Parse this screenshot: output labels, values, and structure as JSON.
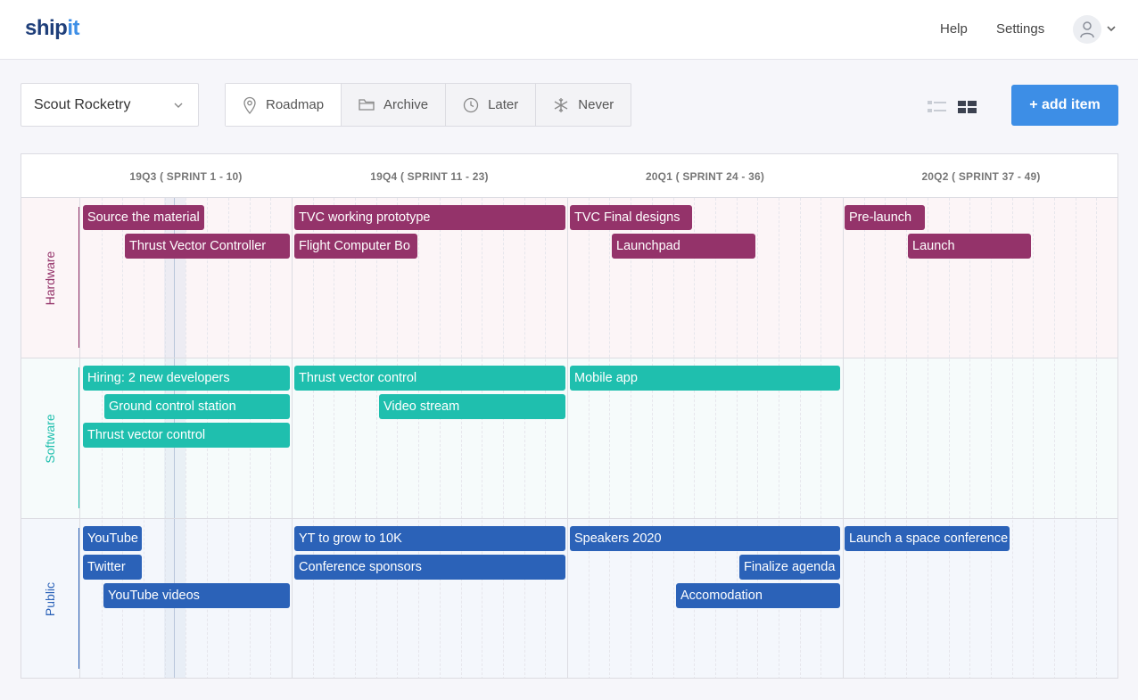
{
  "brand": {
    "part1": "ship",
    "part2": "it"
  },
  "nav": {
    "help": "Help",
    "settings": "Settings"
  },
  "project": {
    "selected": "Scout Rocketry"
  },
  "tabs": [
    {
      "label": "Roadmap",
      "icon": "map-pin-icon"
    },
    {
      "label": "Archive",
      "icon": "folder-icon"
    },
    {
      "label": "Later",
      "icon": "clock-icon"
    },
    {
      "label": "Never",
      "icon": "snowflake-icon"
    }
  ],
  "add_button": "+ add item",
  "quarters": [
    "19Q3 ( SPRINT 1 - 10)",
    "19Q4 ( SPRINT 11 - 23)",
    "20Q1 ( SPRINT 24 - 36)",
    "20Q2 ( SPRINT 37 - 49)"
  ],
  "lanes": [
    {
      "name": "Hardware",
      "color": "#94336a",
      "bg": "#fcf5f7",
      "items": [
        "Source the material",
        "Thrust Vector Controller",
        "TVC working prototype",
        "Flight Computer Bo",
        "TVC Final designs",
        "Launchpad",
        "Pre-launch",
        "Launch"
      ]
    },
    {
      "name": "Software",
      "color": "#1fbfae",
      "bg": "#f6fbfb",
      "items": [
        "Hiring: 2 new developers",
        "Ground control station",
        "Thrust vector control",
        "Thrust vector control",
        "Video stream",
        "Mobile app"
      ]
    },
    {
      "name": "Public",
      "color": "#2b62b8",
      "bg": "#f4f7fc",
      "items": [
        "YouTube",
        "Twitter",
        "YouTube videos",
        "YT to grow to 10K",
        "Conference sponsors",
        "Speakers 2020",
        "Finalize agenda",
        "Accomodation",
        "Launch a space conference"
      ]
    }
  ]
}
